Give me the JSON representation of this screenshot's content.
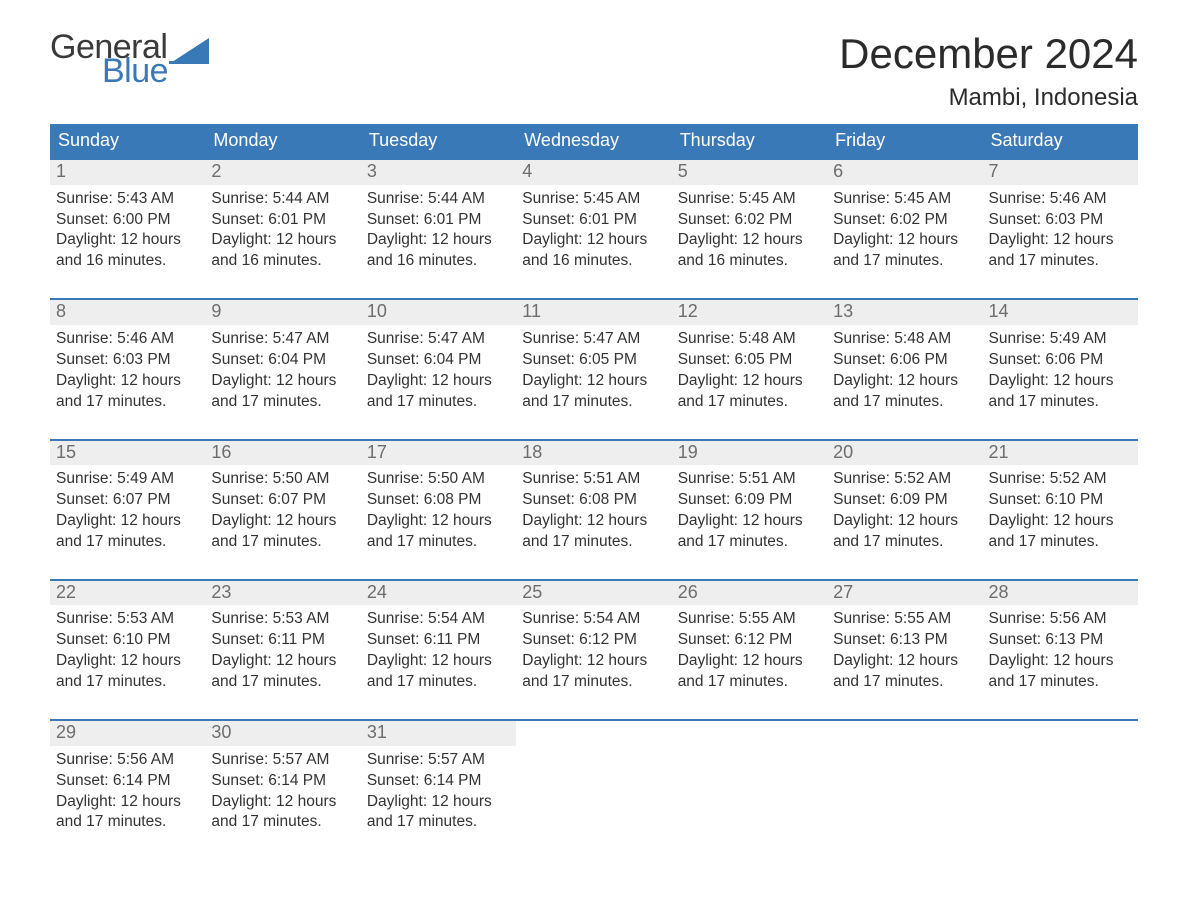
{
  "brand": {
    "text1": "General",
    "text2": "Blue",
    "accent_color": "#3a79b7",
    "text_color": "#3a3a3a"
  },
  "header": {
    "title": "December 2024",
    "location": "Mambi, Indonesia"
  },
  "styling": {
    "page_bg": "#ffffff",
    "header_bar_bg": "#3a79b7",
    "header_bar_text": "#ffffff",
    "week_border_color": "#3a79b7",
    "daynum_bg": "#eeeeee",
    "daynum_color": "#6d6d6d",
    "body_text_color": "#333333",
    "title_fontsize_pt": 32,
    "location_fontsize_pt": 18,
    "dow_fontsize_pt": 14,
    "daynum_fontsize_pt": 14,
    "body_fontsize_pt": 12,
    "columns": 7
  },
  "days_of_week": [
    "Sunday",
    "Monday",
    "Tuesday",
    "Wednesday",
    "Thursday",
    "Friday",
    "Saturday"
  ],
  "weeks": [
    [
      {
        "n": "1",
        "sunrise": "Sunrise: 5:43 AM",
        "sunset": "Sunset: 6:00 PM",
        "daylight1": "Daylight: 12 hours",
        "daylight2": "and 16 minutes."
      },
      {
        "n": "2",
        "sunrise": "Sunrise: 5:44 AM",
        "sunset": "Sunset: 6:01 PM",
        "daylight1": "Daylight: 12 hours",
        "daylight2": "and 16 minutes."
      },
      {
        "n": "3",
        "sunrise": "Sunrise: 5:44 AM",
        "sunset": "Sunset: 6:01 PM",
        "daylight1": "Daylight: 12 hours",
        "daylight2": "and 16 minutes."
      },
      {
        "n": "4",
        "sunrise": "Sunrise: 5:45 AM",
        "sunset": "Sunset: 6:01 PM",
        "daylight1": "Daylight: 12 hours",
        "daylight2": "and 16 minutes."
      },
      {
        "n": "5",
        "sunrise": "Sunrise: 5:45 AM",
        "sunset": "Sunset: 6:02 PM",
        "daylight1": "Daylight: 12 hours",
        "daylight2": "and 16 minutes."
      },
      {
        "n": "6",
        "sunrise": "Sunrise: 5:45 AM",
        "sunset": "Sunset: 6:02 PM",
        "daylight1": "Daylight: 12 hours",
        "daylight2": "and 17 minutes."
      },
      {
        "n": "7",
        "sunrise": "Sunrise: 5:46 AM",
        "sunset": "Sunset: 6:03 PM",
        "daylight1": "Daylight: 12 hours",
        "daylight2": "and 17 minutes."
      }
    ],
    [
      {
        "n": "8",
        "sunrise": "Sunrise: 5:46 AM",
        "sunset": "Sunset: 6:03 PM",
        "daylight1": "Daylight: 12 hours",
        "daylight2": "and 17 minutes."
      },
      {
        "n": "9",
        "sunrise": "Sunrise: 5:47 AM",
        "sunset": "Sunset: 6:04 PM",
        "daylight1": "Daylight: 12 hours",
        "daylight2": "and 17 minutes."
      },
      {
        "n": "10",
        "sunrise": "Sunrise: 5:47 AM",
        "sunset": "Sunset: 6:04 PM",
        "daylight1": "Daylight: 12 hours",
        "daylight2": "and 17 minutes."
      },
      {
        "n": "11",
        "sunrise": "Sunrise: 5:47 AM",
        "sunset": "Sunset: 6:05 PM",
        "daylight1": "Daylight: 12 hours",
        "daylight2": "and 17 minutes."
      },
      {
        "n": "12",
        "sunrise": "Sunrise: 5:48 AM",
        "sunset": "Sunset: 6:05 PM",
        "daylight1": "Daylight: 12 hours",
        "daylight2": "and 17 minutes."
      },
      {
        "n": "13",
        "sunrise": "Sunrise: 5:48 AM",
        "sunset": "Sunset: 6:06 PM",
        "daylight1": "Daylight: 12 hours",
        "daylight2": "and 17 minutes."
      },
      {
        "n": "14",
        "sunrise": "Sunrise: 5:49 AM",
        "sunset": "Sunset: 6:06 PM",
        "daylight1": "Daylight: 12 hours",
        "daylight2": "and 17 minutes."
      }
    ],
    [
      {
        "n": "15",
        "sunrise": "Sunrise: 5:49 AM",
        "sunset": "Sunset: 6:07 PM",
        "daylight1": "Daylight: 12 hours",
        "daylight2": "and 17 minutes."
      },
      {
        "n": "16",
        "sunrise": "Sunrise: 5:50 AM",
        "sunset": "Sunset: 6:07 PM",
        "daylight1": "Daylight: 12 hours",
        "daylight2": "and 17 minutes."
      },
      {
        "n": "17",
        "sunrise": "Sunrise: 5:50 AM",
        "sunset": "Sunset: 6:08 PM",
        "daylight1": "Daylight: 12 hours",
        "daylight2": "and 17 minutes."
      },
      {
        "n": "18",
        "sunrise": "Sunrise: 5:51 AM",
        "sunset": "Sunset: 6:08 PM",
        "daylight1": "Daylight: 12 hours",
        "daylight2": "and 17 minutes."
      },
      {
        "n": "19",
        "sunrise": "Sunrise: 5:51 AM",
        "sunset": "Sunset: 6:09 PM",
        "daylight1": "Daylight: 12 hours",
        "daylight2": "and 17 minutes."
      },
      {
        "n": "20",
        "sunrise": "Sunrise: 5:52 AM",
        "sunset": "Sunset: 6:09 PM",
        "daylight1": "Daylight: 12 hours",
        "daylight2": "and 17 minutes."
      },
      {
        "n": "21",
        "sunrise": "Sunrise: 5:52 AM",
        "sunset": "Sunset: 6:10 PM",
        "daylight1": "Daylight: 12 hours",
        "daylight2": "and 17 minutes."
      }
    ],
    [
      {
        "n": "22",
        "sunrise": "Sunrise: 5:53 AM",
        "sunset": "Sunset: 6:10 PM",
        "daylight1": "Daylight: 12 hours",
        "daylight2": "and 17 minutes."
      },
      {
        "n": "23",
        "sunrise": "Sunrise: 5:53 AM",
        "sunset": "Sunset: 6:11 PM",
        "daylight1": "Daylight: 12 hours",
        "daylight2": "and 17 minutes."
      },
      {
        "n": "24",
        "sunrise": "Sunrise: 5:54 AM",
        "sunset": "Sunset: 6:11 PM",
        "daylight1": "Daylight: 12 hours",
        "daylight2": "and 17 minutes."
      },
      {
        "n": "25",
        "sunrise": "Sunrise: 5:54 AM",
        "sunset": "Sunset: 6:12 PM",
        "daylight1": "Daylight: 12 hours",
        "daylight2": "and 17 minutes."
      },
      {
        "n": "26",
        "sunrise": "Sunrise: 5:55 AM",
        "sunset": "Sunset: 6:12 PM",
        "daylight1": "Daylight: 12 hours",
        "daylight2": "and 17 minutes."
      },
      {
        "n": "27",
        "sunrise": "Sunrise: 5:55 AM",
        "sunset": "Sunset: 6:13 PM",
        "daylight1": "Daylight: 12 hours",
        "daylight2": "and 17 minutes."
      },
      {
        "n": "28",
        "sunrise": "Sunrise: 5:56 AM",
        "sunset": "Sunset: 6:13 PM",
        "daylight1": "Daylight: 12 hours",
        "daylight2": "and 17 minutes."
      }
    ],
    [
      {
        "n": "29",
        "sunrise": "Sunrise: 5:56 AM",
        "sunset": "Sunset: 6:14 PM",
        "daylight1": "Daylight: 12 hours",
        "daylight2": "and 17 minutes."
      },
      {
        "n": "30",
        "sunrise": "Sunrise: 5:57 AM",
        "sunset": "Sunset: 6:14 PM",
        "daylight1": "Daylight: 12 hours",
        "daylight2": "and 17 minutes."
      },
      {
        "n": "31",
        "sunrise": "Sunrise: 5:57 AM",
        "sunset": "Sunset: 6:14 PM",
        "daylight1": "Daylight: 12 hours",
        "daylight2": "and 17 minutes."
      },
      {
        "empty": true
      },
      {
        "empty": true
      },
      {
        "empty": true
      },
      {
        "empty": true
      }
    ]
  ]
}
